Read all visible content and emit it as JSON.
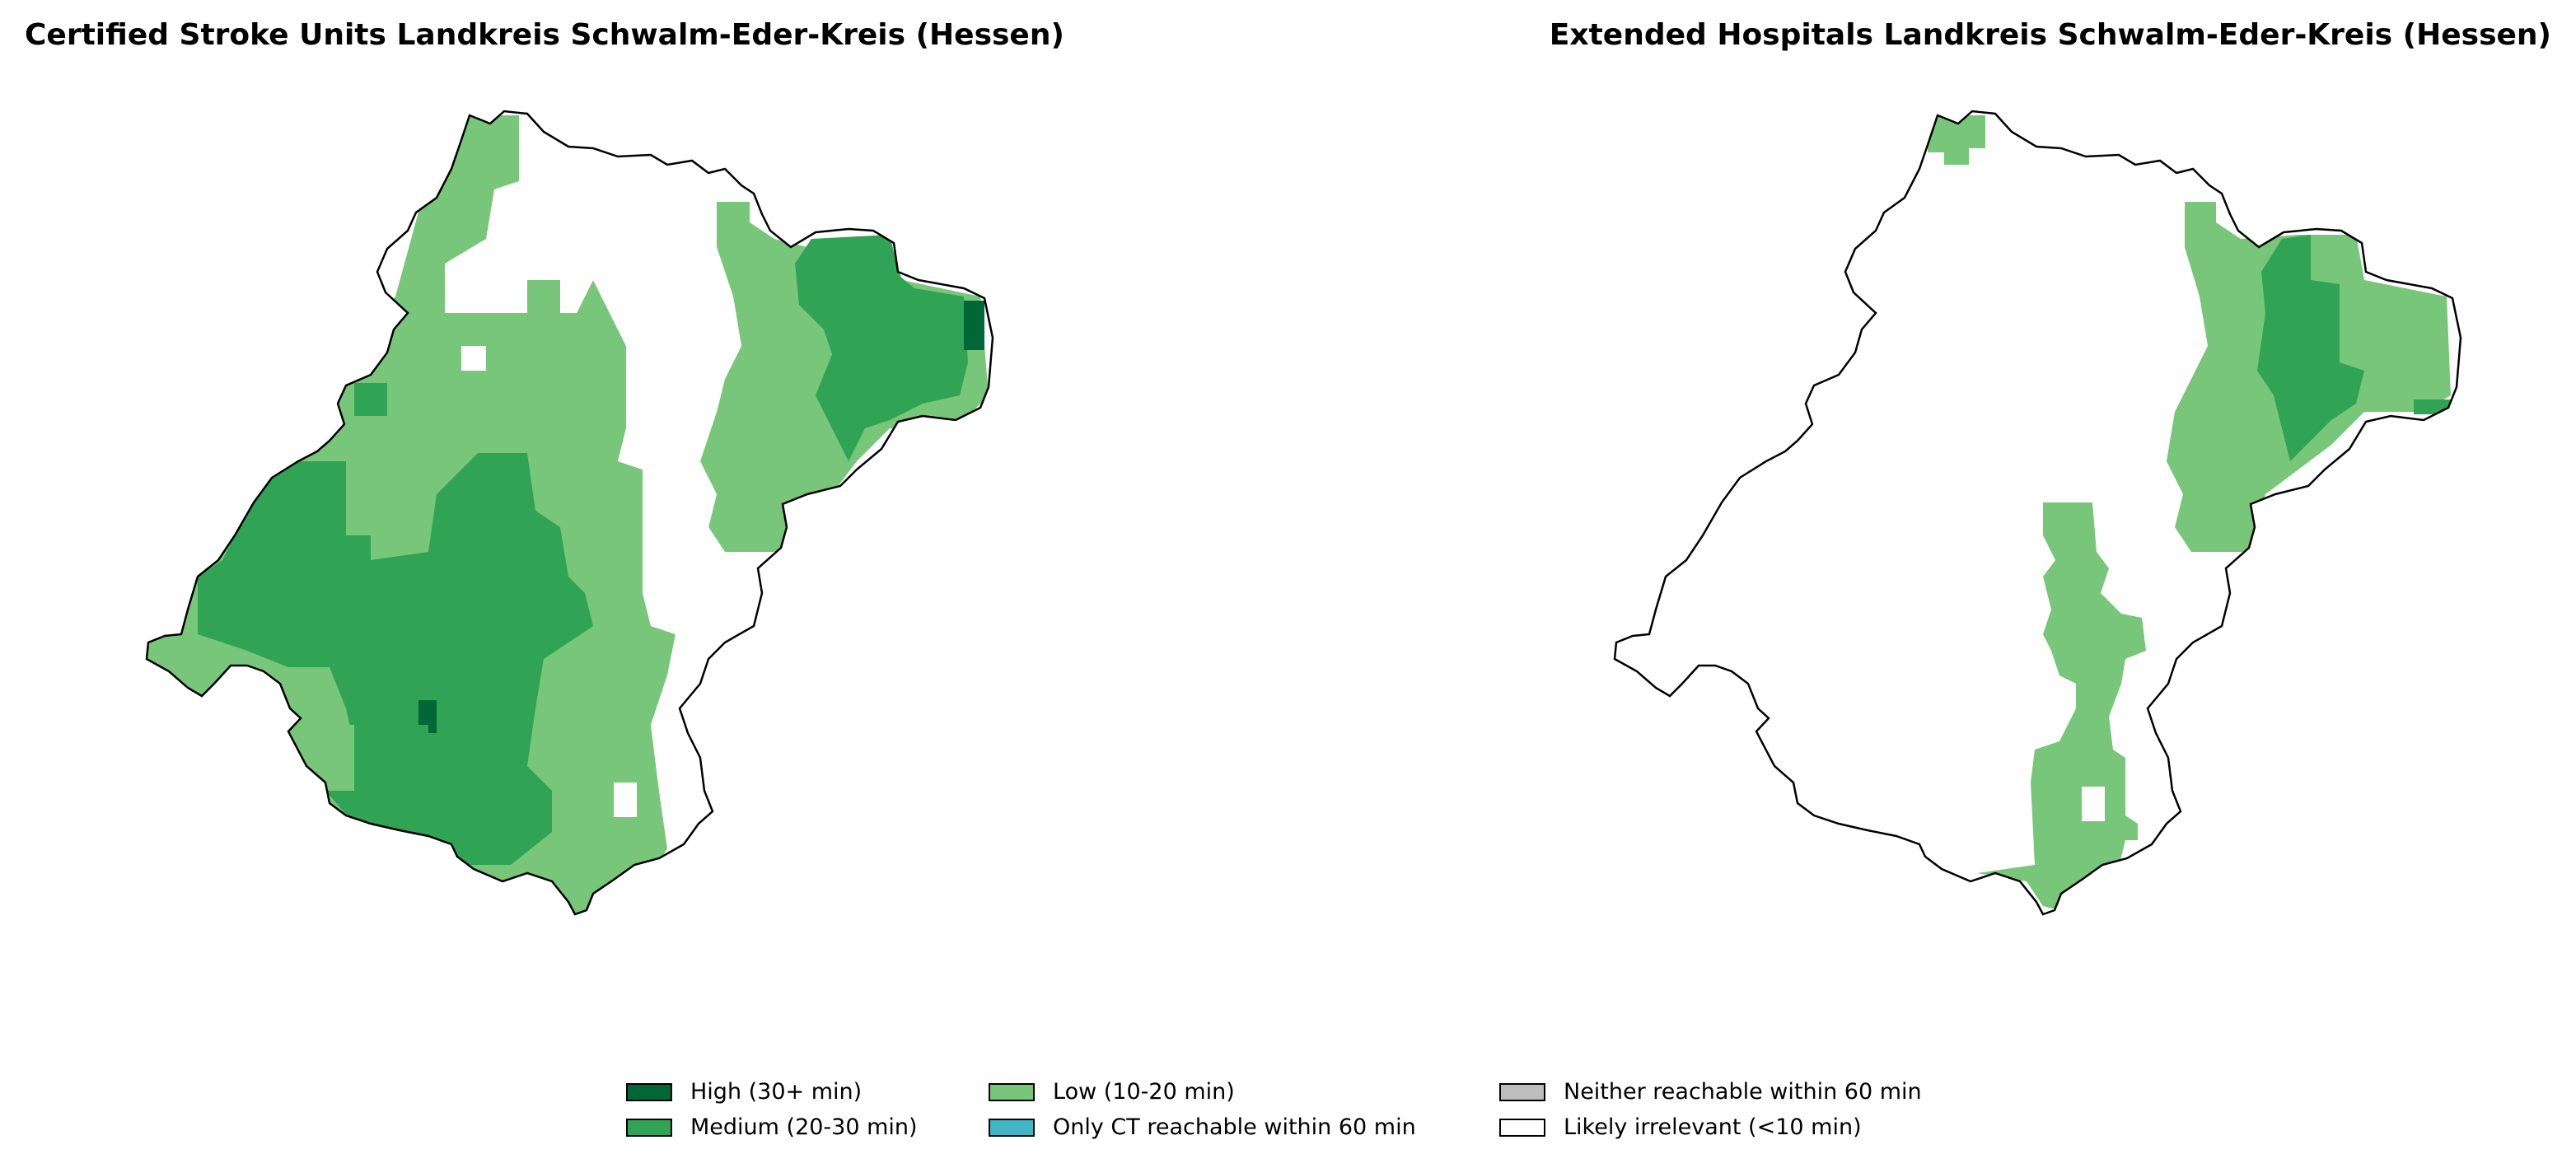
{
  "maps": [
    {
      "title": "Certified Stroke Units Landkreis Schwalm-Eder-Kreis (Hessen)"
    },
    {
      "title": "Extended Hospitals Landkreis Schwalm-Eder-Kreis (Hessen)"
    }
  ],
  "legend": [
    {
      "label": "High (30+ min)",
      "color": "#006837"
    },
    {
      "label": "Low (10-20 min)",
      "color": "#78c679"
    },
    {
      "label": "Neither reachable within 60 min",
      "color": "#bdbdbd"
    },
    {
      "label": "Medium (20-30 min)",
      "color": "#31a354"
    },
    {
      "label": "Only CT reachable within 60 min",
      "color": "#41b6c4"
    },
    {
      "label": "Likely irrelevant (<10 min)",
      "color": "#ffffff"
    }
  ]
}
